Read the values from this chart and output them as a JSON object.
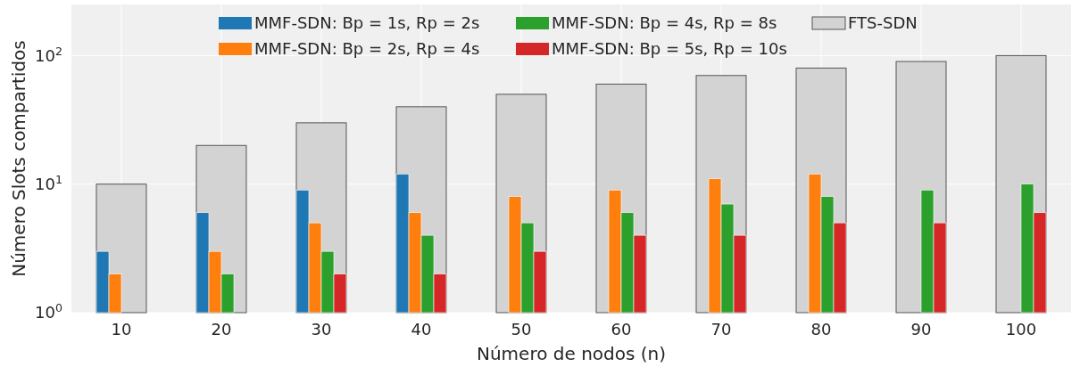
{
  "chart_data": {
    "type": "bar",
    "xlabel": "Número de nodos (n)",
    "ylabel": "Número Slots compartidos",
    "categories": [
      "10",
      "20",
      "30",
      "40",
      "50",
      "60",
      "70",
      "80",
      "90",
      "100"
    ],
    "series": [
      {
        "name": "MMF-SDN: Bp = 1s, Rp = 2s",
        "color": "#1f77b4",
        "values": [
          3,
          6,
          9,
          12,
          null,
          null,
          null,
          null,
          null,
          null
        ]
      },
      {
        "name": "MMF-SDN: Bp = 2s, Rp = 4s",
        "color": "#ff7f0e",
        "values": [
          2,
          3,
          5,
          6,
          8,
          9,
          11,
          12,
          null,
          null
        ]
      },
      {
        "name": "MMF-SDN: Bp = 4s, Rp = 8s",
        "color": "#2ca02c",
        "values": [
          null,
          2,
          3,
          4,
          5,
          6,
          7,
          8,
          9,
          10
        ]
      },
      {
        "name": "MMF-SDN: Bp = 5s, Rp = 10s",
        "color": "#d62728",
        "values": [
          null,
          null,
          2,
          2,
          3,
          4,
          4,
          5,
          5,
          6
        ]
      },
      {
        "name": "FTS-SDN",
        "color": "#d3d3d3",
        "values": [
          10,
          20,
          30,
          40,
          50,
          60,
          70,
          80,
          90,
          100
        ]
      }
    ],
    "log": true,
    "ylim": [
      1,
      250
    ],
    "yticks": [
      {
        "value": 1,
        "label": "10$^{0}$"
      },
      {
        "value": 10,
        "label": "10$^{1}$"
      },
      {
        "value": 100,
        "label": "10$^{2}$"
      }
    ],
    "grid": true,
    "legend": "top"
  }
}
